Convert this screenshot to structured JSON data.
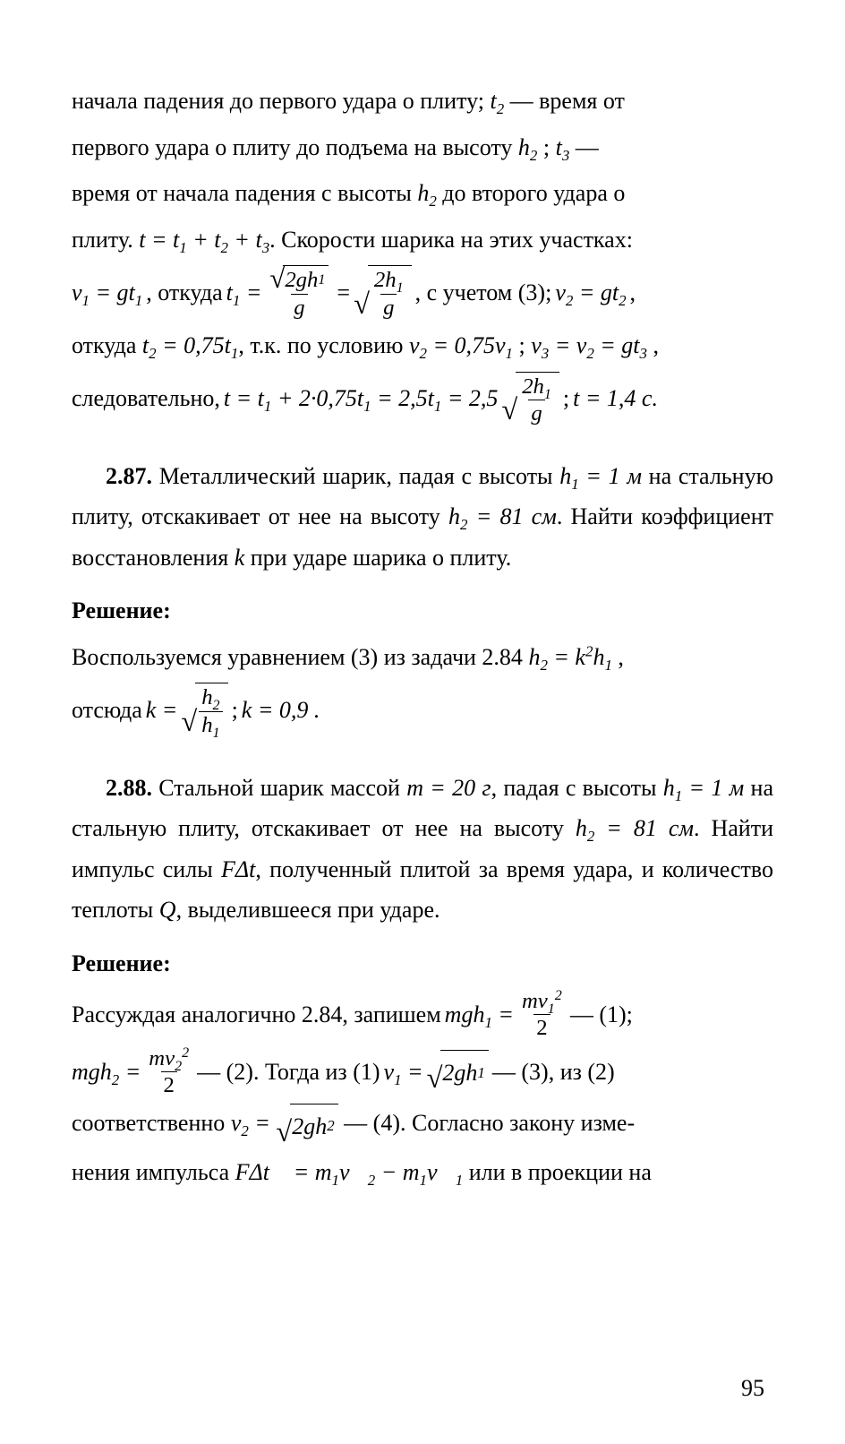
{
  "colors": {
    "text": "#000000",
    "background": "#ffffff"
  },
  "typography": {
    "font_family": "Times New Roman",
    "body_fontsize_pt": 20,
    "line_height": 1.75
  },
  "page_number": "95",
  "p286_continuation": {
    "l1a": "начала падения до первого удара о плиту; ",
    "l1b": " — время от",
    "l2a": "первого удара о плиту до подъема на высоту ",
    "l2b": " —",
    "l3a": "время от начала падения с высоты ",
    "l3b": " до второго удара о",
    "l4a": "плиту. ",
    "l4b": ". Скорости шарика на этих участках:",
    "eq1_a": ", откуда ",
    "eq1_b": ", с учетом (3); ",
    "l5a": "откуда ",
    "l5b": ", т.к. по условию ",
    "l6a": "следовательно, ",
    "t_sum": "t = t₁ + t₂ + t₃",
    "v1_eq": "v₁ = gt₁",
    "t1_lhs": "t₁ = ",
    "sqrt_2gh1": "√(2gh₁)",
    "over_g": "g",
    "two_h1": "2h₁",
    "v2_eq_gt2": "v₂ = gt₂",
    "t2_eq": "t₂ = 0,75t₁",
    "v2_eq_075v1": "v₂ = 0,75v₁",
    "v3_eq": "v₃ = v₂ = gt₃",
    "t_chain": "t = t₁ + 2·0,75t₁ = 2,5t₁ = 2,5",
    "t_val": "t = 1,4 с."
  },
  "p287": {
    "num": "2.87.",
    "text1": " Металлический шарик, падая с высоты ",
    "h1": "h₁ = 1 м",
    "text2": " на стальную плиту, отскакивает от нее на высоту ",
    "h2": "h₂ = 81 см",
    "text3": ". Найти коэффициент восстановления ",
    "k": "k",
    "text4": " при ударе шарика о плиту.",
    "sol_heading": "Решение:",
    "sol_l1a": "Воспользуемся уравнением (3) из задачи 2.84 ",
    "h2_eq": "h₂ = k²h₁",
    "sol_l2a": "отсюда ",
    "k_lhs": "k = ",
    "h2_sym": "h₂",
    "h1_sym": "h₁",
    "sol_l2b": " ; ",
    "k_val": "k = 0,9 ."
  },
  "p288": {
    "num": "2.88.",
    "text1": " Стальной шарик массой ",
    "m": "m = 20 г",
    "text2": ", падая с высоты ",
    "h1": "h₁ = 1 м",
    "text3": " на стальную плиту, отскакивает от нее на высоту ",
    "h2": "h₂ = 81 см",
    "text4": ". Найти импульс силы ",
    "Fdt": "FΔt",
    "text5": ", полученный плитой за время удара, и количество теплоты ",
    "Q": "Q",
    "text6": ", выделившееся при ударе.",
    "sol_heading": "Решение:",
    "sol_l1a": "Рассуждая аналогично 2.84, запишем ",
    "mgh1": "mgh₁ = ",
    "mv1sq": "mv₁²",
    "two": "2",
    "dash1": " — (1);",
    "mgh2": "mgh₂ = ",
    "mv2sq": "mv₂²",
    "dash2": " — (2). Тогда из (1) ",
    "v1_eq": "v₁ = ",
    "sqrt_2gh1": "2gh₁",
    "dash3": " — (3), из (2)",
    "sol_l3a": "соответственно ",
    "v2_eq": "v₂ = ",
    "sqrt_2gh2": "2gh₂",
    "dash4": " — (4). Согласно закону изме-",
    "sol_l4a": "нения импульса ",
    "impulse": "FΔt⃗ = m₁v⃗₂ − m₁v⃗₁",
    "sol_l4b": " или в проекции на"
  }
}
